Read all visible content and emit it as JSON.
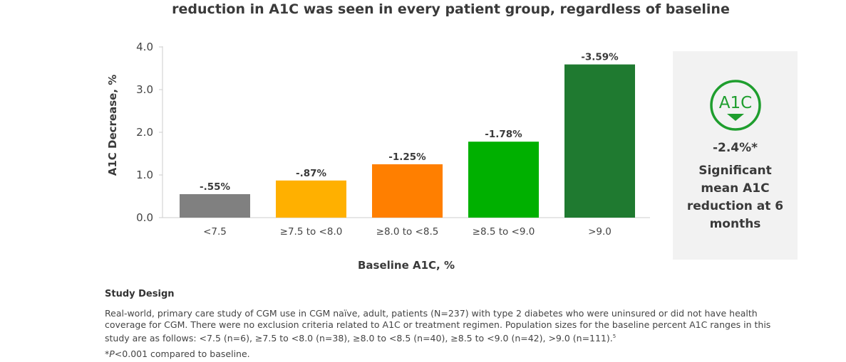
{
  "headline": "reduction in A1C was seen in every patient group, regardless of baseline",
  "chart_data": {
    "type": "bar",
    "title": "reduction in A1C was seen in every patient group, regardless of baseline",
    "xlabel": "Baseline A1C, %",
    "ylabel": "A1C Decrease, %",
    "ylim": [
      0,
      4.0
    ],
    "yticks": [
      "0.0",
      "1.0",
      "2.0",
      "3.0",
      "4.0"
    ],
    "ytick_values": [
      0,
      1,
      2,
      3,
      4
    ],
    "categories": [
      "<7.5",
      "≥7.5 to <8.0",
      "≥8.0 to <8.5",
      "≥8.5 to <9.0",
      ">9.0"
    ],
    "values": [
      0.55,
      0.87,
      1.25,
      1.78,
      3.59
    ],
    "data_labels": [
      "-.55%",
      "-.87%",
      "-1.25%",
      "-1.78%",
      "-3.59%"
    ],
    "colors": [
      "#808080",
      "#ffb000",
      "#ff7f00",
      "#00b000",
      "#1f7a30"
    ],
    "grid": false
  },
  "summary_card": {
    "badge_text": "A1C",
    "value": "-2.4%*",
    "description": "Significant mean A1C reduction at 6 months",
    "accent_color": "#1f9e2e"
  },
  "study_design": {
    "heading": "Study Design",
    "body": "Real-world, primary care study of CGM use in CGM naïve, adult, patients (N=237) with type 2 diabetes who were uninsured or did not have health coverage for CGM. There were no exclusion criteria related to A1C or treatment regimen. Population sizes for the baseline percent A1C ranges in this study are as follows: <7.5 (n=6), ≥7.5 to <8.0 (n=38), ≥8.0 to <8.5 (n=40), ≥8.5 to <9.0 (n=42), >9.0 (n=111).",
    "body_ref": "5",
    "footnote_star": "*",
    "footnote_p": "P",
    "footnote_rest": "<0.001 compared to baseline."
  }
}
